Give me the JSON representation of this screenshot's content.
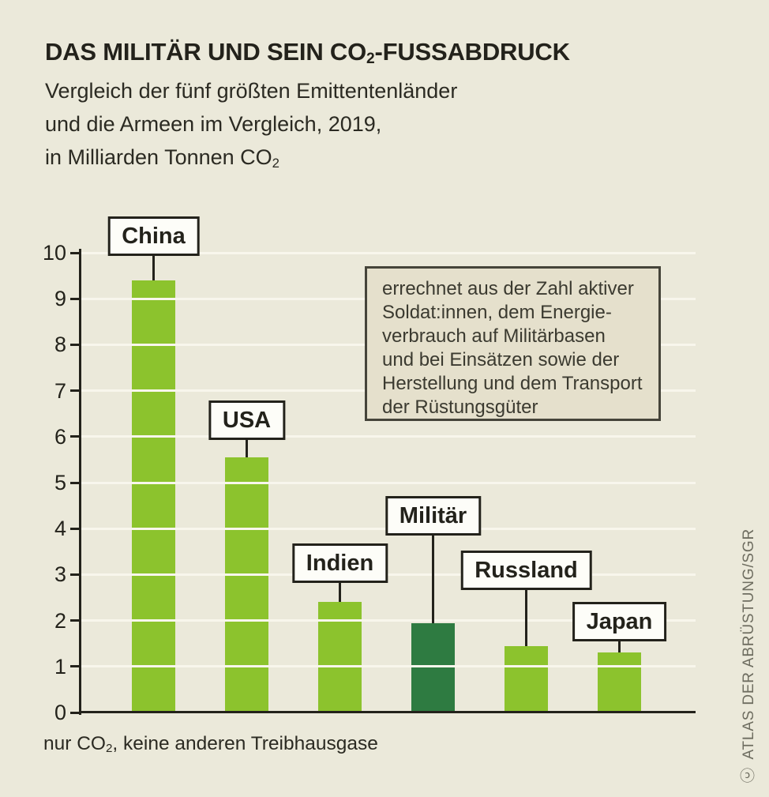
{
  "colors": {
    "background": "#ebe9da",
    "bar_light": "#8cc32d",
    "bar_dark": "#2e7b41",
    "grid": "#f8f6ec",
    "axis": "#23221b",
    "label_box_bg": "#fdfdf8",
    "annotation_bg": "#e5e0cc"
  },
  "header": {
    "title": {
      "pre": "DAS MILITÄR UND SEIN CO",
      "sub": "2",
      "post": "-FUSSABDRUCK"
    },
    "subtitle_lines": [
      "Vergleich der fünf größten Emittentenländer",
      "und die Armeen im Vergleich, 2019,"
    ],
    "subtitle_co2_line": {
      "pre": "in Milliarden Tonnen CO",
      "sub": "2"
    }
  },
  "chart_data": {
    "type": "bar",
    "title": "DAS MILITÄR UND SEIN CO2-FUSSABDRUCK",
    "subtitle": "Vergleich der fünf größten Emittentenländer und die Armeen im Vergleich, 2019, in Milliarden Tonnen CO2",
    "categories": [
      "China",
      "USA",
      "Indien",
      "Militär",
      "Russland",
      "Japan"
    ],
    "values": [
      9.4,
      5.55,
      2.4,
      1.95,
      1.45,
      1.3
    ],
    "bar_colors": [
      "light",
      "light",
      "light",
      "dark",
      "light",
      "light"
    ],
    "unit": "Milliarden Tonnen CO2",
    "xlabel": "",
    "ylabel": "",
    "ylim": [
      0,
      10
    ],
    "ytick_step": 1,
    "grid": true,
    "legend": "none"
  },
  "annotation": {
    "lines": [
      "errechnet aus der Zahl aktiver",
      "Soldat:innen, dem Energie-",
      "verbrauch auf Militärbasen",
      "und bei Einsätzen sowie der",
      "Herstellung und dem Transport",
      "der Rüstungsgüter"
    ]
  },
  "footnote": {
    "pre": "nur CO",
    "sub": "2",
    "post": ", keine anderen Treibhausgase"
  },
  "attribution": {
    "license_symbol": "ⓒ",
    "text": "ATLAS DER ABRÜSTUNG/SGR"
  }
}
